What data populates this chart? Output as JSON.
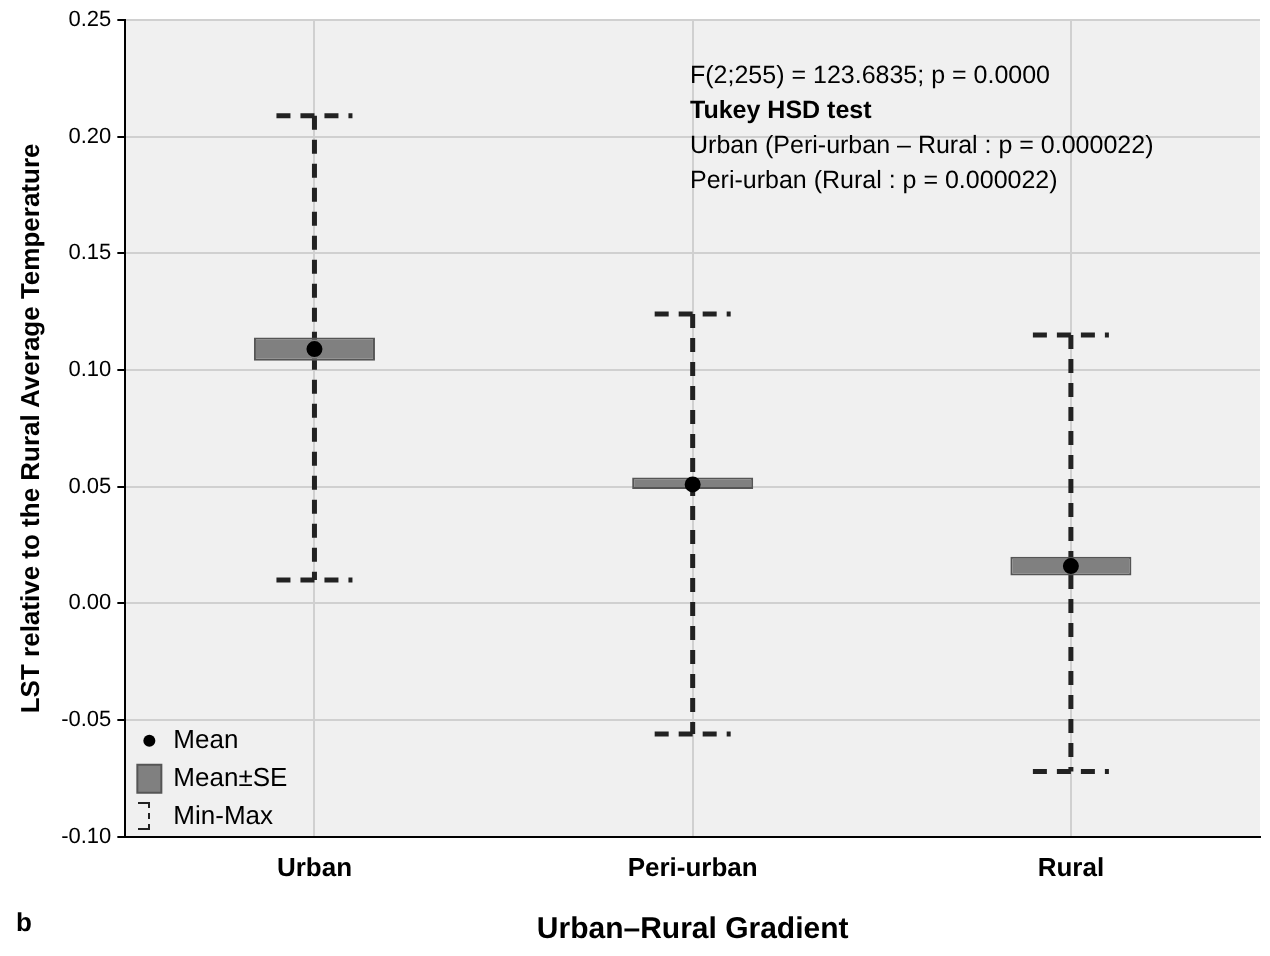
{
  "chart_data": {
    "type": "bar",
    "xlabel": "Urban–Rural Gradient",
    "ylabel": "LST relative to the Rural Average Temperature",
    "categories": [
      "Urban",
      "Peri-urban",
      "Rural"
    ],
    "series": [
      {
        "name": "Mean±SE",
        "base": [
          0.104,
          0.049,
          0.012
        ],
        "values": [
          0.01,
          0.005,
          0.008
        ],
        "color": "#808080"
      },
      {
        "name": "Mean",
        "type": "scatter",
        "x": [
          "Urban",
          "Peri-urban",
          "Rural"
        ],
        "values": [
          0.109,
          0.051,
          0.016
        ],
        "color": "#000000",
        "marker": "circle",
        "errors": [
          [
            0.01,
            0.209
          ],
          [
            -0.056,
            0.124
          ],
          [
            -0.072,
            0.115
          ]
        ],
        "line_style": "dashed"
      }
    ],
    "ylim": [
      -0.1,
      0.25
    ],
    "yticks": [
      {
        "value": -0.1,
        "label": "-0.10"
      },
      -0.05,
      {
        "value": 0,
        "label": "0.00"
      },
      0.05,
      {
        "value": 0.1,
        "label": "0.10"
      },
      0.15,
      {
        "value": 0.2,
        "label": "0.20"
      },
      0.25
    ],
    "grid": true,
    "legend": "bottom left",
    "annotations": [
      "F(2;255) = 123.6835; p = 0.0000",
      "Tukey HSD test",
      "Urban (Peri-urban – Rural : p = 0.000022)",
      "Peri-urban (Rural : p = 0.000022)",
      "Min-Max",
      "b"
    ]
  }
}
